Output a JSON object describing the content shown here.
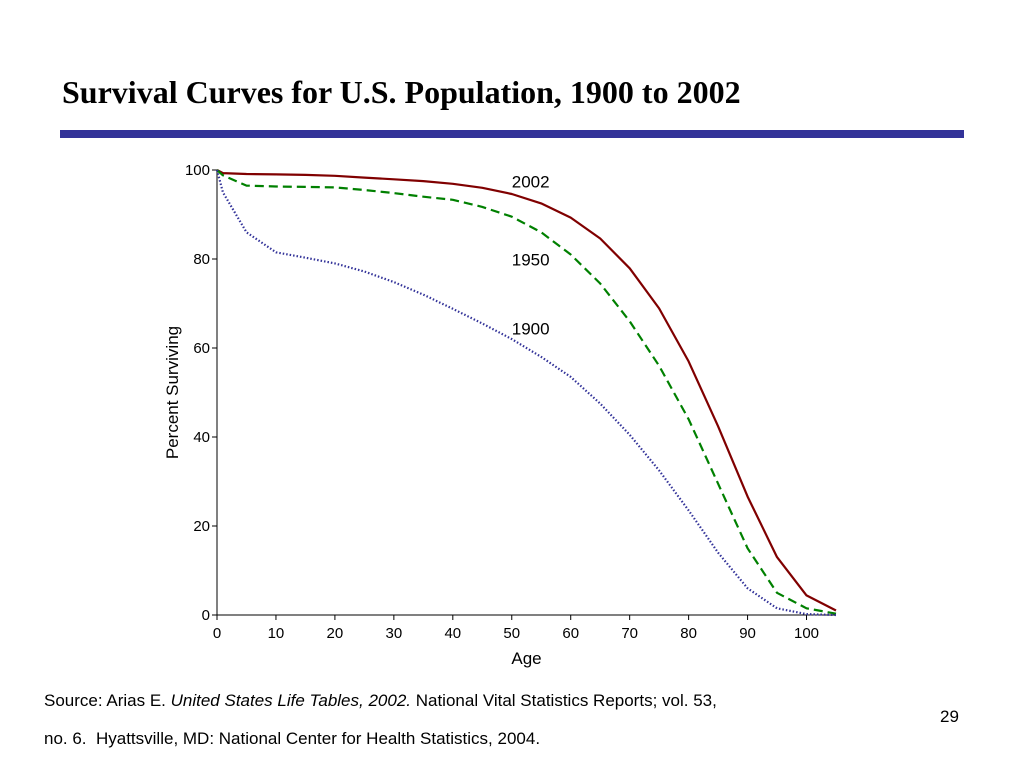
{
  "slide": {
    "title": "Survival Curves for U.S. Population, 1900 to 2002",
    "page_number": "29",
    "source": {
      "prefix": "Source: Arias E. ",
      "italic": "United States Life Tables, 2002.",
      "rest": " National Vital Statistics Reports; vol. 53,",
      "line2": "no. 6.  Hyattsville, MD: National Center for Health Statistics, 2004."
    },
    "colors": {
      "rule": "#333399"
    }
  },
  "chart_data": {
    "type": "line",
    "title": "",
    "xlabel": "Age",
    "ylabel": "Percent Surviving",
    "xlim": [
      0,
      105
    ],
    "ylim": [
      0,
      100
    ],
    "xticks": [
      0,
      10,
      20,
      30,
      40,
      50,
      60,
      70,
      80,
      90,
      100
    ],
    "yticks": [
      0,
      20,
      40,
      60,
      80,
      100
    ],
    "grid": false,
    "x": [
      0,
      1,
      5,
      10,
      15,
      20,
      25,
      30,
      35,
      40,
      45,
      50,
      55,
      60,
      65,
      70,
      75,
      80,
      85,
      90,
      95,
      100,
      105
    ],
    "series": [
      {
        "name": "2002",
        "color": "#800000",
        "style": "solid",
        "values": [
          100,
          99.3,
          99.1,
          99.0,
          98.9,
          98.7,
          98.3,
          97.9,
          97.5,
          96.9,
          96.0,
          94.6,
          92.5,
          89.3,
          84.6,
          77.9,
          68.9,
          57.0,
          42.4,
          26.6,
          13.0,
          4.4,
          1.0
        ]
      },
      {
        "name": "1950",
        "color": "#008000",
        "style": "dashed",
        "values": [
          100,
          98.8,
          96.5,
          96.3,
          96.2,
          96.1,
          95.5,
          94.8,
          94.0,
          93.3,
          91.7,
          89.5,
          86.0,
          81.0,
          74.5,
          66.0,
          56.0,
          44.0,
          29.5,
          15.0,
          5.0,
          1.5,
          0.3
        ]
      },
      {
        "name": "1900",
        "color": "#333399",
        "style": "dotted",
        "values": [
          100,
          95.0,
          86.0,
          81.5,
          80.3,
          79.0,
          77.2,
          74.8,
          72.0,
          68.8,
          65.5,
          62.0,
          58.0,
          53.5,
          47.5,
          40.5,
          32.5,
          23.5,
          14.0,
          6.0,
          1.5,
          0.2,
          0.0
        ]
      }
    ],
    "annotations": [
      {
        "text": "2002",
        "x": 50,
        "y": 98.5
      },
      {
        "text": "1950",
        "x": 50,
        "y": 81.0
      },
      {
        "text": "1900",
        "x": 50,
        "y": 65.5
      }
    ]
  }
}
